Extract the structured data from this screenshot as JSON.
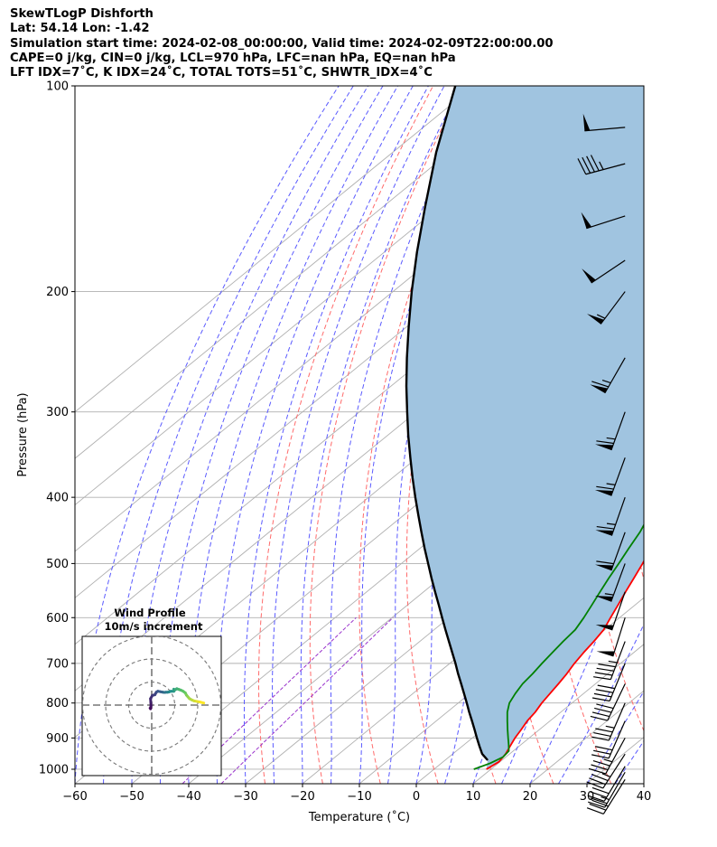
{
  "header": {
    "line1": "SkewTLogP Dishforth",
    "line2": "Lat: 54.14   Lon: -1.42",
    "line3": "Simulation start time: 2024-02-08_00:00:00, Valid time: 2024-02-09T22:00:00.00",
    "line4": "CAPE=0 j/kg, CIN=0 j/kg, LCL=970 hPa, LFC=nan hPa, EQ=nan hPa",
    "line5": "LFT IDX=7˚C, K IDX=24˚C, TOTAL TOTS=51˚C, SHWTR_IDX=4˚C"
  },
  "chart_data": {
    "type": "line",
    "subtype": "skew-t log-p",
    "xlabel": "Temperature (˚C)",
    "ylabel": "Pressure (hPa)",
    "xlim": [
      -60,
      40
    ],
    "ylim": [
      1050,
      100
    ],
    "yscale": "log",
    "x_ticks": [
      "−60",
      "−50",
      "−40",
      "−30",
      "−20",
      "−10",
      "0",
      "10",
      "20",
      "30",
      "40"
    ],
    "x_tick_values": [
      -60,
      -50,
      -40,
      -30,
      -20,
      -10,
      0,
      10,
      20,
      30,
      40
    ],
    "y_ticks": [
      "1000",
      "900",
      "800",
      "700",
      "600",
      "500",
      "400",
      "300",
      "200",
      "100"
    ],
    "y_tick_values": [
      1000,
      900,
      800,
      700,
      600,
      500,
      400,
      300,
      200,
      100
    ],
    "grid": true,
    "colors": {
      "temperature": "#ff0000",
      "dewpoint": "#008000",
      "parcel": "#000000",
      "cin_fill": "#a0c4e0",
      "isotherm": "#b0b0b0",
      "dry_adiabat": "#ff6a6a",
      "moist_adiabat": "#5a5aff",
      "mixing_ratio": "#9932cc"
    },
    "series": [
      {
        "key": "temperature",
        "points": [
          [
            1000,
            9.2
          ],
          [
            975,
            9.8
          ],
          [
            950,
            9.3
          ],
          [
            925,
            8.4
          ],
          [
            900,
            7.5
          ],
          [
            875,
            6.8
          ],
          [
            850,
            6.0
          ],
          [
            825,
            5.5
          ],
          [
            800,
            4.7
          ],
          [
            775,
            4.1
          ],
          [
            750,
            3.5
          ],
          [
            725,
            2.8
          ],
          [
            700,
            1.9
          ],
          [
            675,
            1.2
          ],
          [
            650,
            0.6
          ],
          [
            625,
            -0.2
          ],
          [
            600,
            -1.6
          ],
          [
            575,
            -3.0
          ],
          [
            550,
            -4.5
          ],
          [
            525,
            -6.0
          ],
          [
            500,
            -7.6
          ],
          [
            475,
            -9.4
          ],
          [
            450,
            -11.2
          ],
          [
            425,
            -13.3
          ],
          [
            400,
            -15.8
          ],
          [
            375,
            -18.4
          ],
          [
            350,
            -21.1
          ],
          [
            325,
            -24.1
          ],
          [
            300,
            -27.4
          ],
          [
            290,
            -28.7
          ],
          [
            280,
            -28.1
          ],
          [
            270,
            -27.4
          ],
          [
            250,
            -28.2
          ],
          [
            230,
            -30.1
          ],
          [
            210,
            -32.8
          ],
          [
            200,
            -34.9
          ],
          [
            180,
            -34.6
          ],
          [
            170,
            -34.2
          ],
          [
            160,
            -35.5
          ],
          [
            150,
            -37.7
          ],
          [
            140,
            -40.2
          ],
          [
            130,
            -42.6
          ],
          [
            120,
            -44.8
          ],
          [
            110,
            -46.8
          ],
          [
            100,
            -48.8
          ]
        ]
      },
      {
        "key": "dewpoint",
        "points": [
          [
            1000,
            7.0
          ],
          [
            980,
            8.6
          ],
          [
            960,
            9.5
          ],
          [
            940,
            9.2
          ],
          [
            920,
            7.8
          ],
          [
            900,
            6.3
          ],
          [
            875,
            4.4
          ],
          [
            850,
            2.5
          ],
          [
            825,
            0.6
          ],
          [
            800,
            -1.0
          ],
          [
            775,
            -2.0
          ],
          [
            750,
            -2.8
          ],
          [
            725,
            -3.2
          ],
          [
            700,
            -3.8
          ],
          [
            675,
            -4.3
          ],
          [
            650,
            -4.8
          ],
          [
            625,
            -5.2
          ],
          [
            600,
            -6.3
          ],
          [
            575,
            -7.6
          ],
          [
            550,
            -9.0
          ],
          [
            525,
            -10.4
          ],
          [
            500,
            -11.8
          ],
          [
            475,
            -13.3
          ],
          [
            450,
            -14.8
          ],
          [
            425,
            -16.8
          ],
          [
            400,
            -19.8
          ],
          [
            385,
            -23.5
          ],
          [
            375,
            -25.6
          ],
          [
            350,
            -27.0
          ],
          [
            325,
            -29.2
          ],
          [
            310,
            -31.5
          ],
          [
            295,
            -33.9
          ],
          [
            280,
            -35.8
          ],
          [
            270,
            -35.5
          ],
          [
            250,
            -38.7
          ],
          [
            235,
            -41.2
          ],
          [
            220,
            -42.2
          ],
          [
            200,
            -43.0
          ],
          [
            190,
            -44.6
          ],
          [
            180,
            -45.5
          ],
          [
            170,
            -46.2
          ],
          [
            160,
            -46.9
          ],
          [
            150,
            -47.0
          ],
          [
            140,
            -48.0
          ],
          [
            130,
            -49.5
          ],
          [
            120,
            -51.5
          ],
          [
            110,
            -54.0
          ],
          [
            100,
            -57.0
          ]
        ]
      },
      {
        "key": "parcel",
        "points": [
          [
            970,
            7.5
          ],
          [
            950,
            5.2
          ],
          [
            925,
            3.0
          ],
          [
            900,
            0.8
          ],
          [
            875,
            -1.4
          ],
          [
            850,
            -3.7
          ],
          [
            825,
            -6.1
          ],
          [
            800,
            -8.5
          ],
          [
            775,
            -11.0
          ],
          [
            750,
            -13.6
          ],
          [
            725,
            -16.3
          ],
          [
            700,
            -19.0
          ],
          [
            675,
            -21.9
          ],
          [
            650,
            -24.9
          ],
          [
            625,
            -28.0
          ],
          [
            600,
            -31.2
          ],
          [
            575,
            -34.5
          ],
          [
            550,
            -38.0
          ],
          [
            525,
            -41.6
          ],
          [
            500,
            -45.3
          ],
          [
            475,
            -49.2
          ],
          [
            450,
            -53.2
          ],
          [
            425,
            -57.4
          ],
          [
            400,
            -61.8
          ],
          [
            375,
            -66.4
          ],
          [
            350,
            -71.2
          ],
          [
            325,
            -76.3
          ],
          [
            300,
            -81.6
          ],
          [
            275,
            -87.3
          ],
          [
            250,
            -93.3
          ],
          [
            225,
            -99.7
          ],
          [
            200,
            -106.7
          ],
          [
            175,
            -114.3
          ],
          [
            150,
            -122.7
          ],
          [
            125,
            -132.4
          ],
          [
            100,
            -143.3
          ]
        ]
      }
    ],
    "wind_barbs": [
      {
        "p": 1035,
        "u": -8.2,
        "v": -13.1
      },
      {
        "p": 1010,
        "u": -6.6,
        "v": -11.4
      },
      {
        "p": 990,
        "u": -7.5,
        "v": -12.6
      },
      {
        "p": 950,
        "u": -9.5,
        "v": -14.7
      },
      {
        "p": 900,
        "u": -8.2,
        "v": -15.1
      },
      {
        "p": 850,
        "u": -6.7,
        "v": -15.3
      },
      {
        "p": 800,
        "u": -7.0,
        "v": -16.2
      },
      {
        "p": 750,
        "u": -8.7,
        "v": -18.1
      },
      {
        "p": 700,
        "u": -8.0,
        "v": -19.5
      },
      {
        "p": 650,
        "u": -8.0,
        "v": -21.2
      },
      {
        "p": 600,
        "u": -7.4,
        "v": -23.6
      },
      {
        "p": 550,
        "u": -8.7,
        "v": -25.3
      },
      {
        "p": 500,
        "u": -10.0,
        "v": -27.2
      },
      {
        "p": 450,
        "u": -10.3,
        "v": -28.4
      },
      {
        "p": 400,
        "u": -10.7,
        "v": -30.6
      },
      {
        "p": 350,
        "u": -11.5,
        "v": -31.5
      },
      {
        "p": 300,
        "u": -11.5,
        "v": -31.8
      },
      {
        "p": 250,
        "u": -16.0,
        "v": -27.9
      },
      {
        "p": 200,
        "u": -16.5,
        "v": -22.0
      },
      {
        "p": 180,
        "u": -21.7,
        "v": -14.5
      },
      {
        "p": 155,
        "u": -23.3,
        "v": -7.5
      },
      {
        "p": 130,
        "u": -22.5,
        "v": -6.0
      },
      {
        "p": 115,
        "u": -24.5,
        "v": -2.1
      }
    ],
    "inset": {
      "title": "Wind Profile",
      "subtitle": "10m/s increment",
      "rings_ms": [
        10,
        20,
        30
      ],
      "hodograph_uv": [
        [
          -0.7,
          -1.3
        ],
        [
          -0.5,
          -1.6
        ],
        [
          -0.3,
          -0.2
        ],
        [
          -0.4,
          1.3
        ],
        [
          -0.5,
          2.8
        ],
        [
          0.3,
          4.2
        ],
        [
          1.4,
          4.5
        ],
        [
          2.0,
          5.6
        ],
        [
          2.7,
          6.0
        ],
        [
          3.7,
          5.8
        ],
        [
          4.8,
          5.6
        ],
        [
          5.6,
          5.5
        ],
        [
          6.2,
          5.6
        ],
        [
          6.9,
          5.6
        ],
        [
          7.5,
          5.7
        ],
        [
          8.3,
          6.0
        ],
        [
          9.6,
          6.0
        ],
        [
          9.6,
          6.9
        ],
        [
          10.2,
          6.6
        ],
        [
          10.9,
          7.1
        ],
        [
          11.8,
          6.8
        ],
        [
          12.6,
          6.5
        ],
        [
          13.5,
          6.1
        ],
        [
          14.6,
          5.3
        ],
        [
          15.1,
          4.3
        ],
        [
          15.7,
          3.6
        ],
        [
          16.4,
          2.8
        ],
        [
          17.5,
          2.2
        ],
        [
          18.4,
          1.8
        ],
        [
          19.6,
          1.6
        ],
        [
          21.1,
          1.3
        ],
        [
          22.6,
          0.9
        ]
      ]
    }
  }
}
